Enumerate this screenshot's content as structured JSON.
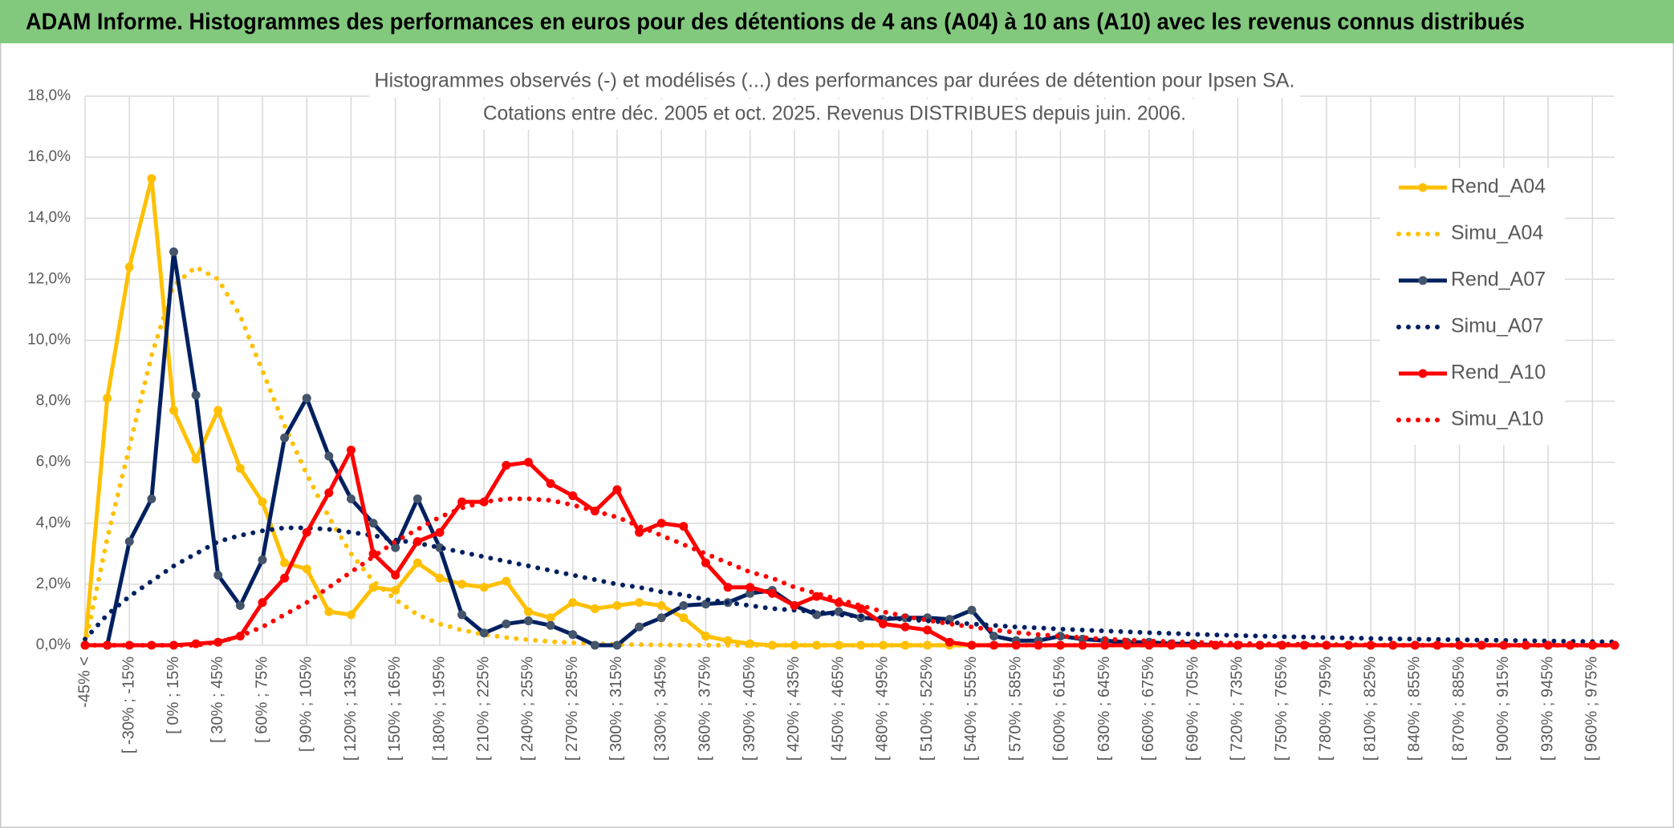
{
  "header": {
    "title": "ADAM Informe. Histogrammes des performances en euros pour des détentions de 4 ans (A04) à 10 ans (A10) avec les revenus connus distribués"
  },
  "chart_data": {
    "type": "line",
    "title": "Histogrammes observés (-) et modélisés (...) des performances par durées de détention pour Ipsen SA.",
    "subtitle": "Cotations entre déc. 2005 et oct. 2025. Revenus DISTRIBUES depuis juin. 2006.",
    "categories": [
      "-45% <",
      null,
      "[ -30% ; -15%",
      null,
      "[ 0% ; 15%",
      null,
      "[ 30% ; 45%",
      null,
      "[ 60% ; 75%",
      null,
      "[ 90% ; 105%",
      null,
      "[ 120% ; 135%",
      null,
      "[ 150% ; 165%",
      null,
      "[ 180% ; 195%",
      null,
      "[ 210% ; 225%",
      null,
      "[ 240% ; 255%",
      null,
      "[ 270% ; 285%",
      null,
      "[ 300% ; 315%",
      null,
      "[ 330% ; 345%",
      null,
      "[ 360% ; 375%",
      null,
      "[ 390% ; 405%",
      null,
      "[ 420% ; 435%",
      null,
      "[ 450% ; 465%",
      null,
      "[ 480% ; 495%",
      null,
      "[ 510% ; 525%",
      null,
      "[ 540% ; 555%",
      null,
      "[ 570% ; 585%",
      null,
      "[ 600% ; 615%",
      null,
      "[ 630% ; 645%",
      null,
      "[ 660% ; 675%",
      null,
      "[ 690% ; 705%",
      null,
      "[ 720% ; 735%",
      null,
      "[ 750% ; 765%",
      null,
      "[ 780% ; 795%",
      null,
      "[ 810% ; 825%",
      null,
      "[ 840% ; 855%",
      null,
      "[ 870% ; 885%",
      null,
      "[ 900% ; 915%",
      null,
      "[ 930% ; 945%",
      null,
      "[ 960% ; 975%",
      null
    ],
    "series": [
      {
        "name": "Rend_A04",
        "color": "#ffc000",
        "style": "solid",
        "markers": true,
        "values": [
          0,
          8.1,
          12.4,
          15.3,
          7.7,
          6.1,
          7.7,
          5.8,
          4.7,
          2.7,
          2.5,
          1.1,
          1.0,
          1.9,
          1.8,
          2.7,
          2.2,
          2.0,
          1.9,
          2.1,
          1.1,
          0.9,
          1.4,
          1.2,
          1.3,
          1.4,
          1.3,
          0.9,
          0.3,
          0.15,
          0.05,
          0,
          0,
          0,
          0,
          0,
          0,
          0,
          0,
          0,
          0,
          0,
          0,
          0,
          0,
          0,
          0,
          0,
          0,
          0,
          0,
          0,
          0,
          0,
          0,
          0,
          0,
          0,
          0,
          0,
          0,
          0,
          0,
          0,
          0,
          0,
          0,
          0,
          0,
          0
        ]
      },
      {
        "name": "Simu_A04",
        "color": "#ffc000",
        "style": "dotted",
        "markers": false,
        "values": [
          0,
          3.5,
          6.5,
          9.5,
          11.8,
          12.4,
          12.0,
          10.8,
          9.0,
          7.2,
          5.6,
          4.2,
          3.0,
          2.1,
          1.5,
          1.0,
          0.7,
          0.5,
          0.35,
          0.25,
          0.18,
          0.12,
          0.08,
          0.05,
          0.03,
          0.02,
          0.01,
          0,
          0,
          0,
          0,
          0,
          0,
          0,
          0,
          0,
          0,
          0,
          0,
          0,
          0,
          0,
          0,
          0,
          0,
          0,
          0,
          0,
          0,
          0,
          0,
          0,
          0,
          0,
          0,
          0,
          0,
          0,
          0,
          0,
          0,
          0,
          0,
          0,
          0,
          0,
          0,
          0,
          0,
          0
        ]
      },
      {
        "name": "Rend_A07",
        "color": "#002060",
        "style": "solid",
        "markers": true,
        "values": [
          0,
          0,
          3.4,
          4.8,
          12.9,
          8.2,
          2.3,
          1.3,
          2.8,
          6.8,
          8.1,
          6.2,
          4.8,
          4.0,
          3.2,
          4.8,
          3.2,
          1.0,
          0.4,
          0.7,
          0.8,
          0.65,
          0.35,
          0,
          0,
          0.6,
          0.9,
          1.3,
          1.35,
          1.4,
          1.7,
          1.8,
          1.3,
          1.0,
          1.1,
          0.9,
          0.85,
          0.9,
          0.9,
          0.85,
          1.15,
          0.3,
          0.15,
          0.15,
          0.3,
          0.2,
          0.15,
          0.1,
          0.1,
          0.05,
          0.05,
          0,
          0,
          0,
          0,
          0,
          0,
          0,
          0,
          0,
          0,
          0,
          0,
          0,
          0,
          0,
          0,
          0,
          0,
          0
        ]
      },
      {
        "name": "Simu_A07",
        "color": "#002060",
        "style": "dotted",
        "markers": false,
        "values": [
          0.2,
          1.0,
          1.6,
          2.1,
          2.6,
          3.0,
          3.4,
          3.6,
          3.75,
          3.85,
          3.85,
          3.8,
          3.7,
          3.6,
          3.45,
          3.35,
          3.2,
          3.05,
          2.9,
          2.75,
          2.6,
          2.45,
          2.3,
          2.15,
          2.0,
          1.9,
          1.75,
          1.65,
          1.5,
          1.4,
          1.3,
          1.2,
          1.15,
          1.1,
          1.0,
          0.95,
          0.9,
          0.85,
          0.8,
          0.75,
          0.7,
          0.65,
          0.6,
          0.57,
          0.53,
          0.5,
          0.47,
          0.44,
          0.41,
          0.39,
          0.36,
          0.34,
          0.32,
          0.3,
          0.28,
          0.27,
          0.25,
          0.24,
          0.22,
          0.21,
          0.2,
          0.19,
          0.18,
          0.17,
          0.16,
          0.15,
          0.14,
          0.13,
          0.12,
          0.11
        ]
      },
      {
        "name": "Rend_A10",
        "color": "#ff0000",
        "style": "solid",
        "markers": true,
        "values": [
          0,
          0,
          0,
          0,
          0,
          0.05,
          0.1,
          0.3,
          1.4,
          2.2,
          3.7,
          5.0,
          6.4,
          3.0,
          2.3,
          3.4,
          3.7,
          4.7,
          4.7,
          5.9,
          6.0,
          5.3,
          4.9,
          4.4,
          5.1,
          3.7,
          4.0,
          3.9,
          2.7,
          1.9,
          1.9,
          1.7,
          1.3,
          1.6,
          1.4,
          1.2,
          0.7,
          0.6,
          0.5,
          0.1,
          0,
          0,
          0,
          0,
          0,
          0,
          0,
          0,
          0,
          0,
          0,
          0,
          0,
          0,
          0,
          0,
          0,
          0,
          0,
          0,
          0,
          0,
          0,
          0,
          0,
          0,
          0,
          0,
          0,
          0
        ]
      },
      {
        "name": "Simu_A10",
        "color": "#ff0000",
        "style": "dotted",
        "markers": false,
        "values": [
          0,
          0,
          0,
          0,
          0,
          0,
          0.1,
          0.3,
          0.6,
          1.0,
          1.4,
          1.9,
          2.4,
          2.9,
          3.4,
          3.8,
          4.2,
          4.5,
          4.7,
          4.8,
          4.8,
          4.75,
          4.6,
          4.4,
          4.2,
          3.9,
          3.6,
          3.3,
          3.0,
          2.7,
          2.4,
          2.2,
          1.9,
          1.7,
          1.5,
          1.3,
          1.1,
          0.95,
          0.82,
          0.7,
          0.6,
          0.5,
          0.42,
          0.35,
          0.3,
          0.25,
          0.2,
          0.17,
          0.14,
          0.12,
          0.1,
          0.08,
          0.06,
          0.05,
          0.04,
          0.03,
          0.02,
          0.02,
          0.01,
          0,
          0,
          0,
          0,
          0,
          0,
          0,
          0,
          0,
          0,
          0
        ]
      }
    ],
    "ylim": [
      0,
      18
    ],
    "yticks": [
      {
        "value": 0,
        "label": "0,0%"
      },
      {
        "value": 2,
        "label": "2,0%"
      },
      {
        "value": 4,
        "label": "4,0%"
      },
      {
        "value": 6,
        "label": "6,0%"
      },
      {
        "value": 8,
        "label": "8,0%"
      },
      {
        "value": 10,
        "label": "10,0%"
      },
      {
        "value": 12,
        "label": "12,0%"
      },
      {
        "value": 14,
        "label": "14,0%"
      },
      {
        "value": 16,
        "label": "16,0%"
      },
      {
        "value": 18,
        "label": "18,0%"
      }
    ],
    "grid": true,
    "legend": "right"
  }
}
